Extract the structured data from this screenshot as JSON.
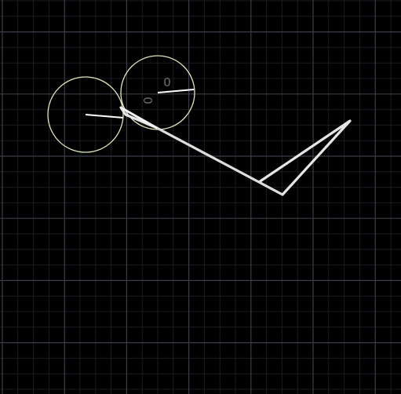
{
  "scene": {
    "background_color": "#000000",
    "grid": {
      "visible": true,
      "minor_color": "#1c1c24",
      "major_color": "#3c3c48"
    },
    "bodies": [
      {
        "name": "wheel-left",
        "kind": "circle",
        "outline_color": "#d8e8b8",
        "rotation_deg": 184
      },
      {
        "name": "wheel-right",
        "kind": "circle",
        "outline_color": "#d8e8b8",
        "rotation_deg": -6
      }
    ],
    "labels": [
      {
        "name": "wheel-right-label",
        "text": "0"
      },
      {
        "name": "wheel-joint-label",
        "text": "0"
      }
    ],
    "structure": {
      "line_color": "#e8e8e8",
      "style": "white linkage"
    }
  }
}
